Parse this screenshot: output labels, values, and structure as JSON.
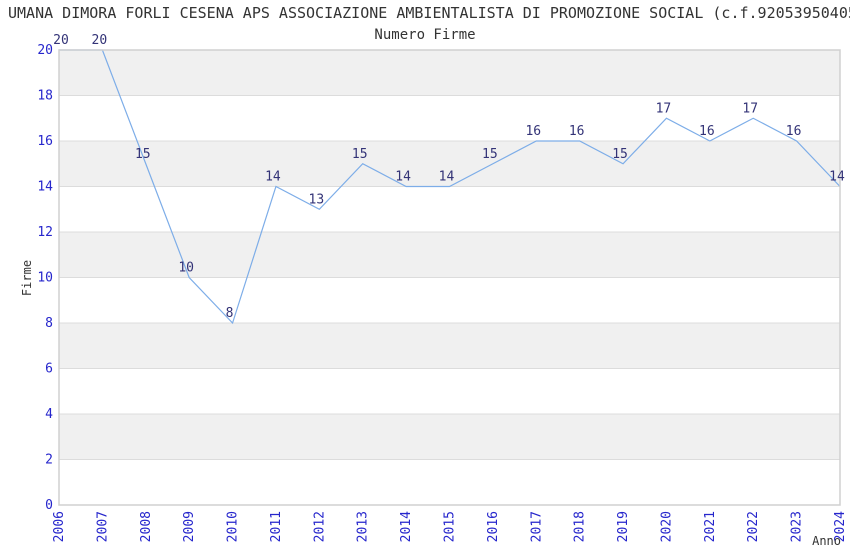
{
  "title": "UMANA DIMORA FORLI CESENA APS ASSOCIAZIONE AMBIENTALISTA DI PROMOZIONE SOCIAL (c.f.92053950405",
  "chart_data": {
    "type": "line",
    "title": "Numero Firme",
    "xlabel": "Anno",
    "ylabel": "Firme",
    "categories": [
      "2006",
      "2007",
      "2008",
      "2009",
      "2010",
      "2011",
      "2012",
      "2013",
      "2014",
      "2015",
      "2016",
      "2017",
      "2018",
      "2019",
      "2020",
      "2021",
      "2022",
      "2023",
      "2024"
    ],
    "values": [
      20,
      20,
      15,
      10,
      8,
      14,
      13,
      15,
      14,
      14,
      15,
      16,
      16,
      15,
      17,
      16,
      17,
      16,
      14
    ],
    "point_labels_visible": true,
    "ylim": [
      0,
      20
    ],
    "yticks": [
      0,
      2,
      4,
      6,
      8,
      10,
      12,
      14,
      16,
      18,
      20
    ],
    "x_tick_rotation_deg": 90,
    "grid": "horizontal-lines-with-alternating-bands",
    "legend": "none",
    "colors": {
      "line": "#7dade8",
      "tick_label": "#2626cc",
      "point_label": "#333377",
      "band": "#f0f0f0",
      "gridline": "#dcdcdc",
      "frame": "#d0d0d0",
      "text": "#333333"
    }
  }
}
